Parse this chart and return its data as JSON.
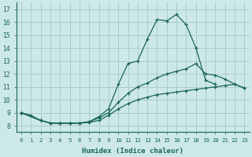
{
  "xlabel": "Humidex (Indice chaleur)",
  "background_color": "#cce8e8",
  "grid_color": "#aacccc",
  "line_color": "#1a6655",
  "xlim": [
    -0.5,
    23.5
  ],
  "ylim": [
    7.5,
    17.5
  ],
  "yticks": [
    8,
    9,
    10,
    11,
    12,
    13,
    14,
    15,
    16,
    17
  ],
  "xticks": [
    0,
    1,
    2,
    3,
    4,
    5,
    6,
    7,
    8,
    9,
    10,
    11,
    12,
    13,
    14,
    15,
    16,
    17,
    18,
    19,
    20,
    21,
    22,
    23
  ],
  "line1_x": [
    0,
    1,
    2,
    3,
    4,
    5,
    6,
    7,
    8,
    9,
    10,
    11,
    12,
    13,
    14,
    15,
    16,
    17,
    18,
    19,
    20
  ],
  "line1_y": [
    9.0,
    8.8,
    8.4,
    8.2,
    8.2,
    8.2,
    8.2,
    8.3,
    8.7,
    9.3,
    11.2,
    12.8,
    13.0,
    14.7,
    16.2,
    16.1,
    16.6,
    15.8,
    14.0,
    11.5,
    11.2
  ],
  "line2_x": [
    0,
    2,
    3,
    4,
    5,
    6,
    7,
    8,
    9,
    10,
    11,
    12,
    13,
    14,
    15,
    16,
    17,
    18,
    19,
    20,
    21,
    22,
    23
  ],
  "line2_y": [
    9.0,
    8.4,
    8.2,
    8.2,
    8.2,
    8.2,
    8.3,
    8.6,
    9.0,
    9.8,
    10.5,
    11.0,
    11.3,
    11.7,
    12.0,
    12.2,
    12.4,
    12.8,
    12.0,
    11.9,
    11.6,
    11.2,
    10.9
  ],
  "line3_x": [
    0,
    2,
    3,
    4,
    5,
    6,
    7,
    8,
    9,
    10,
    11,
    12,
    13,
    14,
    15,
    16,
    17,
    18,
    19,
    20,
    21,
    22,
    23
  ],
  "line3_y": [
    9.0,
    8.4,
    8.2,
    8.2,
    8.2,
    8.2,
    8.25,
    8.4,
    8.8,
    9.3,
    9.7,
    10.0,
    10.2,
    10.4,
    10.5,
    10.6,
    10.7,
    10.8,
    10.9,
    11.0,
    11.1,
    11.2,
    10.9
  ]
}
